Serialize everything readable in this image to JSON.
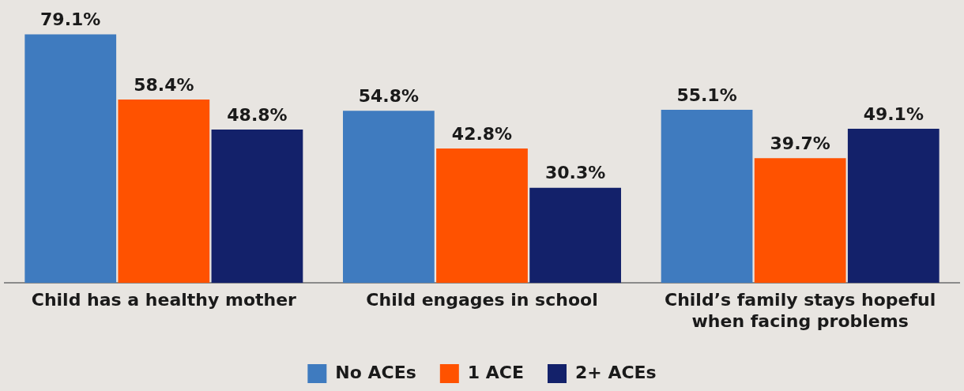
{
  "chart_data": {
    "type": "bar",
    "categories": [
      "Child has a healthy mother",
      "Child engages in school",
      "Child’s family stays hopeful when facing problems"
    ],
    "series": [
      {
        "name": "No ACEs",
        "color": "#3f7bbf",
        "values": [
          79.1,
          54.8,
          55.1
        ],
        "value_labels": [
          "79.1%",
          "54.8%",
          "55.1%"
        ]
      },
      {
        "name": "1 ACE",
        "color": "#ff5200",
        "values": [
          58.4,
          42.8,
          39.7
        ],
        "value_labels": [
          "58.4%",
          "42.8%",
          "39.7%"
        ]
      },
      {
        "name": "2+ ACEs",
        "color": "#13216a",
        "values": [
          48.8,
          30.3,
          49.1
        ],
        "value_labels": [
          "48.8%",
          "30.3%",
          "49.1%"
        ]
      }
    ],
    "grid": false,
    "legend": "bottom",
    "tick_labels": "x"
  }
}
